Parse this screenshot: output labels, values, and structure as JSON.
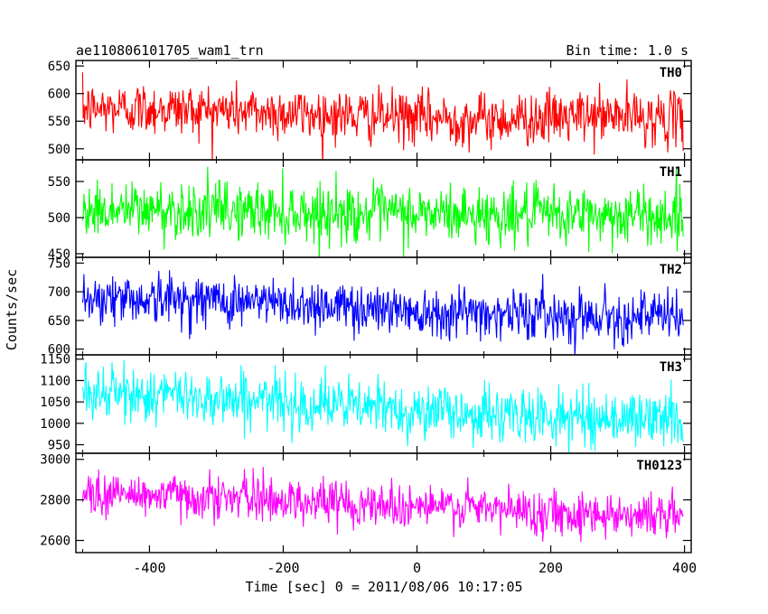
{
  "chart_data": {
    "type": "line",
    "title": "ae110806101705_wam1_trn",
    "bin_time": "Bin time: 1.0 s",
    "xlabel": "Time [sec] 0 = 2011/08/06 10:17:05",
    "ylabel": "Counts/sec",
    "xlim": [
      -510,
      410
    ],
    "x_ticks": [
      "-400",
      "-200",
      "0",
      "200",
      "400"
    ],
    "x_tick_values": [
      -400,
      -200,
      0,
      200,
      400
    ],
    "x_range": [
      -500,
      398
    ],
    "panels": [
      {
        "name": "TH0",
        "color": "#ff0000",
        "ylim": [
          480,
          660
        ],
        "y_tick_values": [
          500,
          550,
          600,
          650
        ],
        "y_tick_labels": [
          "500",
          "550",
          "600",
          "650"
        ],
        "trend": [
          [
            -500,
            572
          ],
          [
            -400,
            573
          ],
          [
            -300,
            570
          ],
          [
            -200,
            565
          ],
          [
            -100,
            560
          ],
          [
            0,
            556
          ],
          [
            100,
            553
          ],
          [
            200,
            556
          ],
          [
            300,
            560
          ],
          [
            398,
            552
          ]
        ],
        "noise_sd": 24
      },
      {
        "name": "TH1",
        "color": "#00ff00",
        "ylim": [
          445,
          580
        ],
        "y_tick_values": [
          450,
          500,
          550
        ],
        "y_tick_labels": [
          "450",
          "500",
          "550"
        ],
        "trend": [
          [
            -500,
            510
          ],
          [
            -400,
            511
          ],
          [
            -300,
            510
          ],
          [
            -200,
            508
          ],
          [
            -100,
            506
          ],
          [
            0,
            505
          ],
          [
            100,
            504
          ],
          [
            200,
            503
          ],
          [
            300,
            503
          ],
          [
            398,
            502
          ]
        ],
        "noise_sd": 20
      },
      {
        "name": "TH2",
        "color": "#0000ff",
        "ylim": [
          590,
          760
        ],
        "y_tick_values": [
          600,
          650,
          700,
          750
        ],
        "y_tick_labels": [
          "600",
          "650",
          "700",
          "750"
        ],
        "trend": [
          [
            -500,
            690
          ],
          [
            -400,
            688
          ],
          [
            -300,
            685
          ],
          [
            -200,
            680
          ],
          [
            -100,
            674
          ],
          [
            0,
            668
          ],
          [
            100,
            664
          ],
          [
            200,
            660
          ],
          [
            300,
            658
          ],
          [
            398,
            656
          ]
        ],
        "noise_sd": 22
      },
      {
        "name": "TH3",
        "color": "#00ffff",
        "ylim": [
          930,
          1160
        ],
        "y_tick_values": [
          950,
          1000,
          1050,
          1100,
          1150
        ],
        "y_tick_labels": [
          "950",
          "1000",
          "1050",
          "1100",
          "1150"
        ],
        "trend": [
          [
            -500,
            1070
          ],
          [
            -400,
            1066
          ],
          [
            -300,
            1060
          ],
          [
            -200,
            1050
          ],
          [
            -100,
            1040
          ],
          [
            0,
            1030
          ],
          [
            100,
            1020
          ],
          [
            200,
            1015
          ],
          [
            300,
            1012
          ],
          [
            398,
            1010
          ]
        ],
        "noise_sd": 32
      },
      {
        "name": "TH0123",
        "color": "#ff00ff",
        "ylim": [
          2540,
          3030
        ],
        "y_tick_values": [
          2600,
          2800,
          3000
        ],
        "y_tick_labels": [
          "2600",
          "2800",
          "3000"
        ],
        "trend": [
          [
            -500,
            2830
          ],
          [
            -400,
            2825
          ],
          [
            -300,
            2815
          ],
          [
            -200,
            2800
          ],
          [
            -100,
            2785
          ],
          [
            0,
            2770
          ],
          [
            100,
            2755
          ],
          [
            200,
            2740
          ],
          [
            300,
            2730
          ],
          [
            398,
            2722
          ]
        ],
        "noise_sd": 55
      }
    ]
  }
}
